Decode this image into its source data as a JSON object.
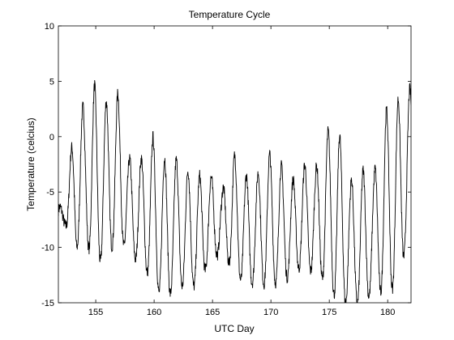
{
  "chart_data": {
    "type": "line",
    "title": "Temperature Cycle",
    "xlabel": "UTC Day",
    "ylabel": "Temperature (celcius)",
    "xlim": [
      151.8,
      182
    ],
    "ylim": [
      -15,
      10
    ],
    "xticks": [
      155,
      160,
      165,
      170,
      175,
      180
    ],
    "yticks": [
      -15,
      -10,
      -5,
      0,
      5,
      10
    ],
    "xtick_labels": [
      "155",
      "160",
      "165",
      "170",
      "175",
      "180"
    ],
    "ytick_labels": [
      "-15",
      "-10",
      "-5",
      "0",
      "5",
      "10"
    ],
    "grid": false,
    "line_color": "#000000",
    "series": [
      {
        "daily_cycles": [
          {
            "day": 151.8,
            "min": -7.5,
            "max": -6.5
          },
          {
            "day": 152.4,
            "min": -8.0,
            "max": -5.8
          },
          {
            "day": 153.3,
            "min": -10.0,
            "max": 2.5
          },
          {
            "day": 154.2,
            "min": -9.5,
            "max": 2.8
          },
          {
            "day": 154.9,
            "min": -11.5,
            "max": 4.7
          },
          {
            "day": 155.8,
            "min": -11.0,
            "max": 3.1
          },
          {
            "day": 156.9,
            "min": -9.0,
            "max": 4.0
          },
          {
            "day": 157.8,
            "min": -10.5,
            "max": -2.0
          },
          {
            "day": 158.9,
            "min": -11.5,
            "max": -2.0
          },
          {
            "day": 159.9,
            "min": -13.0,
            "max": 0.0
          },
          {
            "day": 160.9,
            "min": -15.0,
            "max": -2.0
          },
          {
            "day": 161.8,
            "min": -13.5,
            "max": -2.0
          },
          {
            "day": 162.8,
            "min": -13.5,
            "max": -3.0
          },
          {
            "day": 163.8,
            "min": -13.5,
            "max": -3.5
          },
          {
            "day": 164.8,
            "min": -11.0,
            "max": -3.5
          },
          {
            "day": 165.8,
            "min": -10.5,
            "max": -5.0
          },
          {
            "day": 166.8,
            "min": -12.0,
            "max": -1.5
          },
          {
            "day": 167.8,
            "min": -13.5,
            "max": -3.5
          },
          {
            "day": 168.8,
            "min": -13.0,
            "max": -3.5
          },
          {
            "day": 169.8,
            "min": -13.5,
            "max": -1.5
          },
          {
            "day": 170.8,
            "min": -13.0,
            "max": -2.5
          },
          {
            "day": 171.8,
            "min": -12.5,
            "max": -4.0
          },
          {
            "day": 172.8,
            "min": -11.5,
            "max": -2.5
          },
          {
            "day": 173.8,
            "min": -12.5,
            "max": -3.0
          },
          {
            "day": 174.8,
            "min": -13.0,
            "max": 0.5
          },
          {
            "day": 175.8,
            "min": -15.0,
            "max": 0.5
          },
          {
            "day": 176.8,
            "min": -15.0,
            "max": -4.0
          },
          {
            "day": 177.8,
            "min": -15.0,
            "max": -3.0
          },
          {
            "day": 178.8,
            "min": -14.0,
            "max": -3.5
          },
          {
            "day": 179.8,
            "min": -14.0,
            "max": 2.3
          },
          {
            "day": 180.9,
            "min": -13.5,
            "max": 3.4
          },
          {
            "day": 181.8,
            "min": -8.5,
            "max": 4.3
          }
        ]
      }
    ]
  }
}
